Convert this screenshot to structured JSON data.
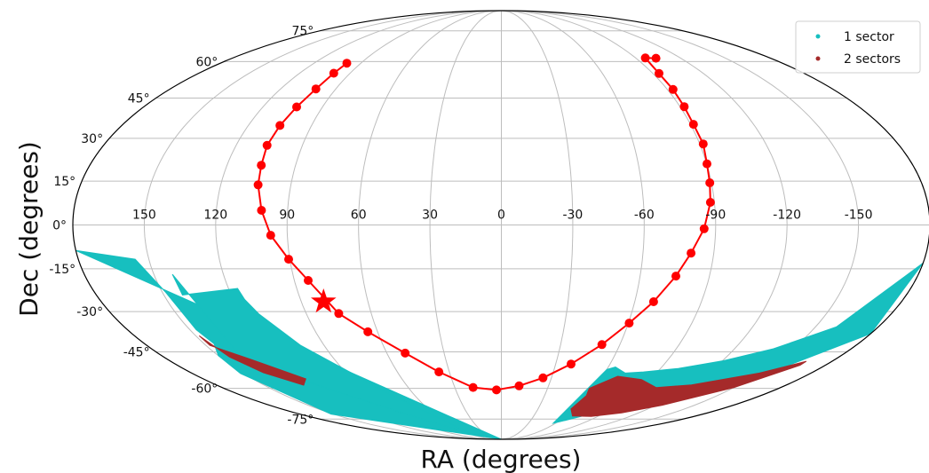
{
  "chart_data": {
    "type": "scatter",
    "projection": "mollweide",
    "xlabel": "RA (degrees)",
    "ylabel": "Dec (degrees)",
    "x_ticks": [
      "150",
      "120",
      "90",
      "60",
      "30",
      "0",
      "-30",
      "-60",
      "-90",
      "-120",
      "-150"
    ],
    "x_tick_values": [
      150,
      120,
      90,
      60,
      30,
      0,
      -30,
      -60,
      -90,
      -120,
      -150
    ],
    "y_ticks": [
      "-75°",
      "-60°",
      "-45°",
      "-30°",
      "-15°",
      "0°",
      "15°",
      "30°",
      "45°",
      "60°",
      "75°"
    ],
    "y_tick_values": [
      -75,
      -60,
      -45,
      -30,
      -15,
      0,
      15,
      30,
      45,
      60,
      75
    ],
    "grid": true,
    "legend": {
      "placement": "top-right",
      "entries": [
        {
          "label": "1 sector",
          "color": "#17bfbf"
        },
        {
          "label": "2 sectors",
          "color": "#a52a2a"
        }
      ]
    },
    "coverage": [
      {
        "series": "1 sector",
        "color": "#17bfbf",
        "regions": [
          {
            "ra": [
              180,
              155.8,
              148.5,
              146.9,
              145,
              150,
              152,
              152.3,
              180
            ],
            "dec": [
              -8.7,
              -11.7,
              -23.2,
              -36.6,
              -41.9,
              -46.5,
              -53.7,
              -72.3,
              -90
            ]
          },
          {
            "ra": [
              142,
              141.7,
              116,
              115,
              112,
              102,
              85,
              80,
              55,
              60,
              85,
              106.6,
              124.5,
              138.6
            ],
            "dec": [
              -16.9,
              -24.1,
              -21.8,
              -25.7,
              -30.8,
              -42.4,
              -55,
              -60,
              -81.4,
              -82.8,
              -72.2,
              -62.8,
              -55,
              -46.5
            ]
          },
          {
            "ra": [
              -180,
              -160,
              -140,
              -120,
              -100,
              -82,
              -72,
              -64,
              -60,
              -57.5,
              -64,
              -90,
              -120,
              -150,
              -180
            ],
            "dec": [
              -13,
              -35.6,
              -43.8,
              -48.6,
              -51.6,
              -53,
              -53.5,
              -51,
              -52,
              -77.4,
              -76,
              -69.5,
              -65.1,
              -57.7,
              -38.1
            ]
          }
        ]
      },
      {
        "series": "2 sectors",
        "color": "#a52a2a",
        "regions": [
          {
            "ra": [
              148.3,
              145,
              138,
              125,
              118,
              135,
              148
            ],
            "dec": [
              -38.9,
              -47,
              -53.3,
              -58.6,
              -55.9,
              -48,
              -42.5
            ]
          },
          {
            "ra": [
              -59,
              -57,
              -66,
              -84,
              -105,
              -125,
              -150,
              -166,
              -166,
              -150,
              -120,
              -100,
              -85,
              -69,
              -57
            ],
            "dec": [
              -63.2,
              -69.6,
              -73.3,
              -73.5,
              -71.6,
              -67.8,
              -59.7,
              -50.3,
              -48.7,
              -53.5,
              -58.5,
              -59.7,
              -56.2,
              -54.8,
              -60
            ]
          }
        ]
      }
    ],
    "path": {
      "color": "#ff0000",
      "points": [
        {
          "ra": 99,
          "dec": 59.3
        },
        {
          "ra": 99.7,
          "dec": 55
        },
        {
          "ra": 100.8,
          "dec": 48.6
        },
        {
          "ra": 103,
          "dec": 41.6
        },
        {
          "ra": 105,
          "dec": 34.7
        },
        {
          "ra": 106,
          "dec": 27.5
        },
        {
          "ra": 105,
          "dec": 20.5
        },
        {
          "ra": 104,
          "dec": 13.7
        },
        {
          "ra": 101,
          "dec": 5
        },
        {
          "ra": 97,
          "dec": -3.5
        },
        {
          "ra": 90.5,
          "dec": -11.7
        },
        {
          "ra": 84,
          "dec": -19
        },
        {
          "ra": 75,
          "dec": -30.7
        },
        {
          "ra": 64.7,
          "dec": -37.4
        },
        {
          "ra": 50.4,
          "dec": -45.5
        },
        {
          "ra": 36,
          "dec": -53
        },
        {
          "ra": 18.2,
          "dec": -59.6
        },
        {
          "ra": 3.2,
          "dec": -60.7
        },
        {
          "ra": -11.3,
          "dec": -58.9
        },
        {
          "ra": -25,
          "dec": -55.5
        },
        {
          "ra": -38.5,
          "dec": -49.8
        },
        {
          "ra": -50.9,
          "dec": -42.2
        },
        {
          "ra": -60.4,
          "dec": -34.2
        },
        {
          "ra": -68.5,
          "dec": -26.5
        },
        {
          "ra": -75.5,
          "dec": -17.5
        },
        {
          "ra": -80.4,
          "dec": -9.6
        },
        {
          "ra": -85.2,
          "dec": -1.3
        },
        {
          "ra": -88.3,
          "dec": 7.7
        },
        {
          "ra": -89.3,
          "dec": 14.4
        },
        {
          "ra": -90.1,
          "dec": 21
        },
        {
          "ra": -91.6,
          "dec": 28
        },
        {
          "ra": -91.4,
          "dec": 35.1
        },
        {
          "ra": -92.1,
          "dec": 41.7
        },
        {
          "ra": -93.1,
          "dec": 48.4
        },
        {
          "ra": -93.6,
          "dec": 54.9
        },
        {
          "ra": -96.5,
          "dec": 61.6
        },
        {
          "ra": -103.4,
          "dec": 61.5
        }
      ]
    },
    "star": {
      "ra": 80,
      "dec": -26.5,
      "color": "#ff0000"
    }
  }
}
